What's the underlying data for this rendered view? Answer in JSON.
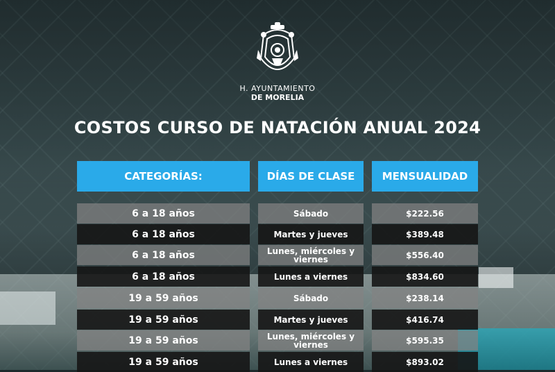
{
  "header": {
    "org_line1": "H. AYUNTAMIENTO",
    "org_line2": "DE MORELIA",
    "title": "COSTOS CURSO DE NATACIÓN ANUAL 2024"
  },
  "table": {
    "columns": [
      "CATEGORÍAS:",
      "DÍAS DE CLASE",
      "MENSUALIDAD"
    ],
    "rows": [
      {
        "categoria": "6 a 18 años",
        "dias": "Sábado",
        "mensualidad": "$222.56"
      },
      {
        "categoria": "6 a 18 años",
        "dias": "Martes y jueves",
        "mensualidad": "$389.48"
      },
      {
        "categoria": "6 a 18 años",
        "dias": "Lunes, miércoles y viernes",
        "mensualidad": "$556.40"
      },
      {
        "categoria": "6 a 18 años",
        "dias": "Lunes a viernes",
        "mensualidad": "$834.60"
      },
      {
        "categoria": "19 a 59 años",
        "dias": "Sábado",
        "mensualidad": "$238.14"
      },
      {
        "categoria": "19 a 59 años",
        "dias": "Martes y jueves",
        "mensualidad": "$416.74"
      },
      {
        "categoria": "19 a 59 años",
        "dias": "Lunes, miércoles y viernes",
        "mensualidad": "$595.35"
      },
      {
        "categoria": "19 a 59 años",
        "dias": "Lunes a viernes",
        "mensualidad": "$893.02"
      }
    ]
  },
  "colors": {
    "header_blue": "#2aaae9",
    "row_light": "#828282",
    "row_dark": "#161616"
  },
  "icons": {
    "logo": "morelia-coat-of-arms-icon"
  }
}
